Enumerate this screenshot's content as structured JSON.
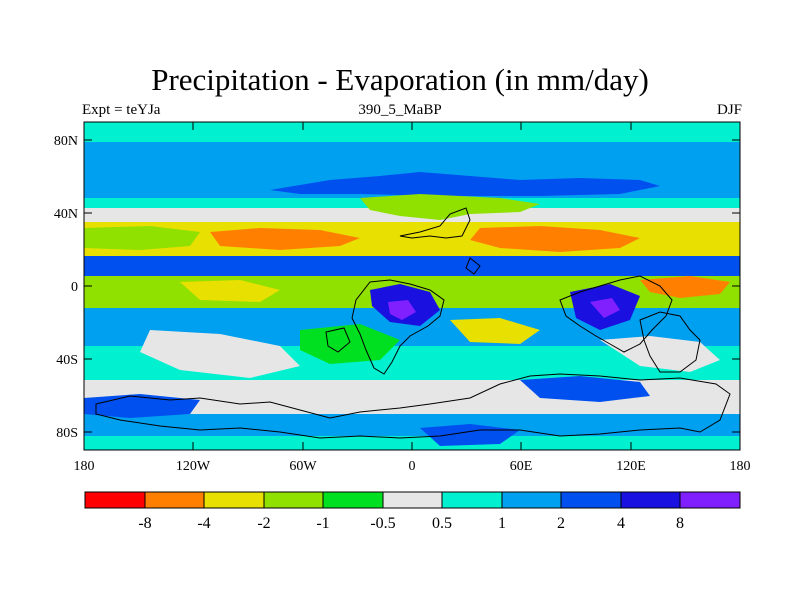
{
  "title": "Precipitation - Evaporation (in mm/day)",
  "experiment_label": "Expt = teYJa",
  "run_label": "390_5_MaBP",
  "season_label": "DJF",
  "map": {
    "lat_ticks": [
      "80N",
      "40N",
      "0",
      "40S",
      "80S"
    ],
    "lon_ticks": [
      "180",
      "120W",
      "60W",
      "0",
      "60E",
      "120E",
      "180"
    ]
  },
  "colorbar": {
    "colors": [
      "#ff0000",
      "#ff8000",
      "#e8e000",
      "#90e000",
      "#00e020",
      "#e6e6e6",
      "#00f0d0",
      "#00a0f0",
      "#0050f0",
      "#1a10e0",
      "#8020ff"
    ],
    "labels": [
      "-8",
      "-4",
      "-2",
      "-1",
      "-0.5",
      "0.5",
      "1",
      "2",
      "4",
      "8"
    ]
  },
  "palette": {
    "strong_dry": "#ff0000",
    "dry": "#ff8000",
    "moderate_dry": "#e8e000",
    "light_dry": "#90e000",
    "near_dry": "#00e020",
    "neutral": "#e6e6e6",
    "light_wet": "#00f0d0",
    "wet": "#00a0f0",
    "very_wet": "#0050f0",
    "extreme_wet": "#1a10e0",
    "max_wet": "#8020ff"
  }
}
